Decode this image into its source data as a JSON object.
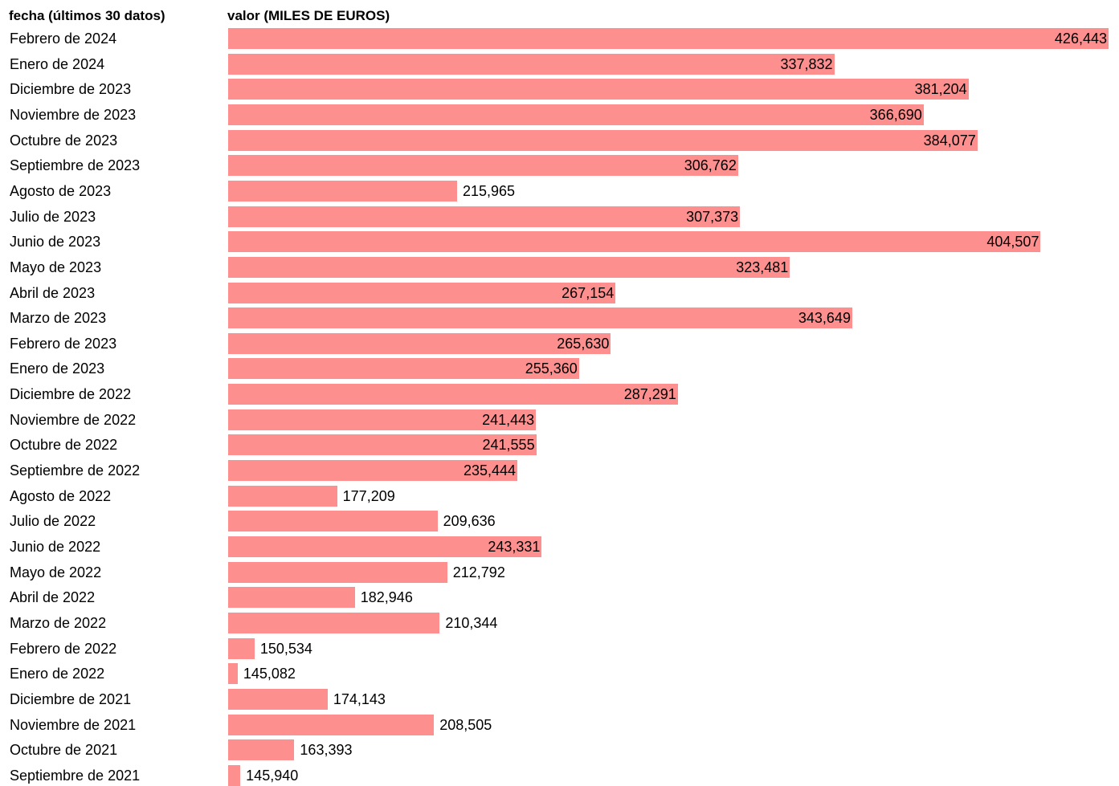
{
  "chart_data": {
    "type": "bar",
    "orientation": "horizontal",
    "category_header": "fecha (últimos 30 datos)",
    "value_header": "valor (MILES DE EUROS)",
    "bar_color": "#fe8f8f",
    "categories": [
      "Febrero de 2024",
      "Enero de 2024",
      "Diciembre de 2023",
      "Noviembre de 2023",
      "Octubre de 2023",
      "Septiembre de 2023",
      "Agosto de 2023",
      "Julio de 2023",
      "Junio de 2023",
      "Mayo de 2023",
      "Abril de 2023",
      "Marzo de 2023",
      "Febrero de 2023",
      "Enero de 2023",
      "Diciembre de 2022",
      "Noviembre de 2022",
      "Octubre de 2022",
      "Septiembre de 2022",
      "Agosto de 2022",
      "Julio de 2022",
      "Junio de 2022",
      "Mayo de 2022",
      "Abril de 2022",
      "Marzo de 2022",
      "Febrero de 2022",
      "Enero de 2022",
      "Diciembre de 2021",
      "Noviembre de 2021",
      "Octubre de 2021",
      "Septiembre de 2021"
    ],
    "values": [
      426443,
      337832,
      381204,
      366690,
      384077,
      306762,
      215965,
      307373,
      404507,
      323481,
      267154,
      343649,
      265630,
      255360,
      287291,
      241443,
      241555,
      235444,
      177209,
      209636,
      243331,
      212792,
      182946,
      210344,
      150534,
      145082,
      174143,
      208505,
      163393,
      145940
    ],
    "value_labels": [
      "426,443",
      "337,832",
      "381,204",
      "366,690",
      "384,077",
      "306,762",
      "215,965",
      "307,373",
      "404,507",
      "323,481",
      "267,154",
      "343,649",
      "265,630",
      "255,360",
      "287,291",
      "241,443",
      "241,555",
      "235,444",
      "177,209",
      "209,636",
      "243,331",
      "212,792",
      "182,946",
      "210,344",
      "150,534",
      "145,082",
      "174,143",
      "208,505",
      "163,393",
      "145,940"
    ],
    "xlim": [
      142000,
      426443
    ]
  }
}
